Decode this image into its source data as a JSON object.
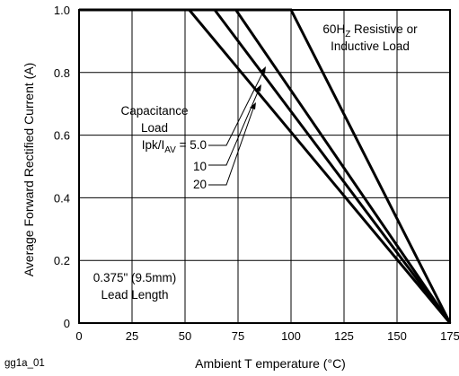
{
  "chart_data": {
    "type": "line",
    "figure_id": "gg1a_01",
    "xlabel": "Ambient T emperature (°C)",
    "ylabel": "Average Forward Rectified Current (A)",
    "xlim": [
      0,
      175
    ],
    "ylim": [
      0,
      1.0
    ],
    "x_ticks": [
      "0",
      "25",
      "50",
      "75",
      "100",
      "125",
      "150",
      "175"
    ],
    "y_ticks": [
      "0",
      "0.2",
      "0.4",
      "0.6",
      "0.8",
      "1.0"
    ],
    "grid": true,
    "series": [
      {
        "name": "60Hz Resistive or Inductive Load",
        "points": [
          [
            0,
            1.0
          ],
          [
            100,
            1.0
          ],
          [
            175,
            0
          ]
        ]
      },
      {
        "name": "Ipk/IAV = 5.0",
        "points": [
          [
            0,
            1.0
          ],
          [
            74,
            1.0
          ],
          [
            175,
            0
          ]
        ]
      },
      {
        "name": "10",
        "points": [
          [
            0,
            1.0
          ],
          [
            64,
            1.0
          ],
          [
            175,
            0
          ]
        ]
      },
      {
        "name": "20",
        "points": [
          [
            0,
            1.0
          ],
          [
            52,
            1.0
          ],
          [
            175,
            0
          ]
        ]
      }
    ],
    "annotations": {
      "resistive_line1_pre": "60H",
      "resistive_line1_sub": "Z",
      "resistive_line1_post": " Resistive or",
      "resistive_line2": "Inductive Load",
      "cap_title1": "Capacitance",
      "cap_title2": "Load",
      "cap_ratio_pre": "Ipk/I",
      "cap_ratio_sub": "AV",
      "cap_ratio_post": " = 5.0",
      "cap_10": "10",
      "cap_20": "20",
      "lead1": "0.375\" (9.5mm)",
      "lead2": "Lead Length"
    }
  }
}
